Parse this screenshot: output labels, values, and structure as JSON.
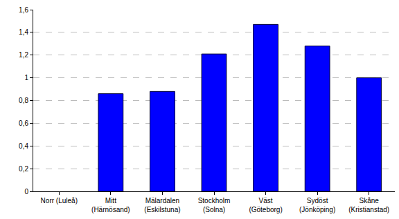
{
  "chart_data": {
    "type": "bar",
    "categories": [
      "Norr (Luleå)",
      "Mitt\n(Härnösand)",
      "Mälardalen\n(Eskilstuna)",
      "Stockholm\n(Solna)",
      "Väst\n(Göteborg)",
      "Sydöst\n(Jönköping)",
      "Skåne\n(Kristianstad)"
    ],
    "values": [
      null,
      0.86,
      0.88,
      1.21,
      1.47,
      1.28,
      1.0
    ],
    "color": "#0000ff",
    "ylim": [
      0,
      1.6
    ],
    "yticks": [
      0,
      {
        "value": 0.2,
        "label": "0,2"
      },
      {
        "value": 0.4,
        "label": "0,4"
      },
      {
        "value": 0.6,
        "label": "0,6"
      },
      {
        "value": 0.8,
        "label": "0,8"
      },
      1,
      {
        "value": 1.2,
        "label": "1,2"
      },
      {
        "value": 1.4,
        "label": "1,4"
      },
      {
        "value": 1.6,
        "label": "1,6"
      }
    ],
    "grid": true
  }
}
